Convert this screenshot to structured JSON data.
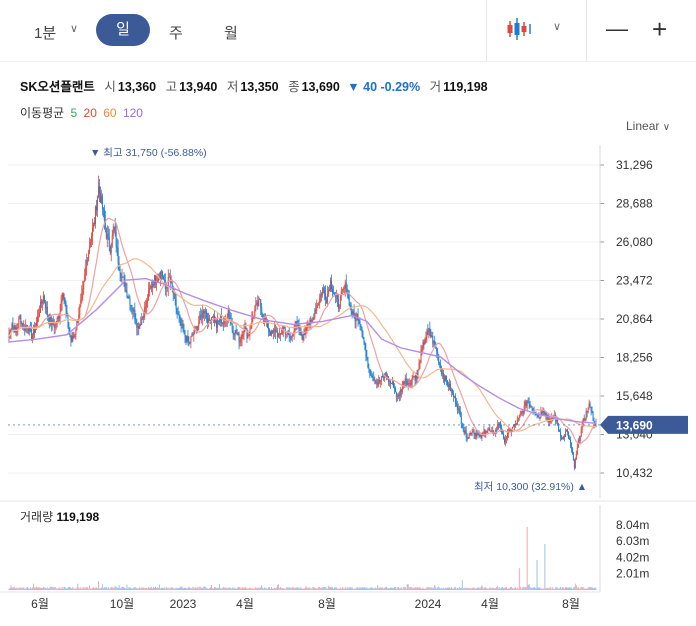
{
  "toolbar": {
    "intervals": [
      "1분",
      "일",
      "주",
      "월"
    ],
    "active_interval": "일",
    "minus_label": "—",
    "plus_label": "+"
  },
  "quote": {
    "name": "SK오션플랜트",
    "open_label": "시",
    "open": "13,360",
    "high_label": "고",
    "high": "13,940",
    "low_label": "저",
    "low": "13,350",
    "close_label": "종",
    "close": "13,690",
    "change": "▼ 40 -0.29%",
    "volume_label": "거",
    "volume": "119,198"
  },
  "moving_average": {
    "label": "이동평균",
    "periods": [
      {
        "value": "5",
        "color": "#3aa65a"
      },
      {
        "value": "20",
        "color": "#e0483f"
      },
      {
        "value": "60",
        "color": "#f08a3c"
      },
      {
        "value": "120",
        "color": "#9a6ad6"
      }
    ]
  },
  "scale_label": "Linear",
  "colors": {
    "up": "#e0483f",
    "down": "#1a7fd4",
    "accent": "#3d5a98",
    "volume": "#e79ba8"
  },
  "chart_data": {
    "type": "candlestick",
    "y_ticks": [
      "31,296",
      "28,688",
      "26,080",
      "23,472",
      "20,864",
      "18,256",
      "15,648",
      "13,040",
      "10,432"
    ],
    "y_tick_values": [
      31296,
      28688,
      26080,
      23472,
      20864,
      18256,
      15648,
      13040,
      10432
    ],
    "x_ticks": [
      "6월",
      "10월",
      "2023",
      "4월",
      "8월",
      "2024",
      "4월",
      "8월"
    ],
    "ylim": [
      10432,
      31296
    ],
    "current_price": "13,690",
    "current_value": 13690,
    "max_annotation": "▼ 최고 31,750 (-56.88%)",
    "min_annotation": "최저 10,300 (32.91%) ▲",
    "series_close": [
      [
        0,
        19600
      ],
      [
        4,
        20600
      ],
      [
        8,
        19900
      ],
      [
        12,
        21000
      ],
      [
        16,
        20200
      ],
      [
        20,
        20500
      ],
      [
        24,
        19700
      ],
      [
        28,
        20300
      ],
      [
        32,
        21500
      ],
      [
        36,
        22400
      ],
      [
        40,
        21200
      ],
      [
        44,
        20600
      ],
      [
        48,
        20400
      ],
      [
        52,
        21100
      ],
      [
        56,
        22900
      ],
      [
        60,
        20800
      ],
      [
        64,
        19400
      ],
      [
        68,
        19900
      ],
      [
        72,
        21300
      ],
      [
        76,
        22600
      ],
      [
        80,
        24800
      ],
      [
        84,
        26300
      ],
      [
        88,
        27500
      ],
      [
        92,
        29800
      ],
      [
        96,
        28400
      ],
      [
        100,
        26600
      ],
      [
        104,
        25700
      ],
      [
        108,
        27000
      ],
      [
        112,
        24900
      ],
      [
        116,
        23700
      ],
      [
        120,
        22800
      ],
      [
        124,
        22100
      ],
      [
        128,
        21300
      ],
      [
        132,
        20300
      ],
      [
        136,
        20900
      ],
      [
        140,
        21700
      ],
      [
        144,
        22800
      ],
      [
        148,
        23500
      ],
      [
        152,
        23700
      ],
      [
        156,
        24100
      ],
      [
        160,
        22900
      ],
      [
        164,
        23600
      ],
      [
        168,
        22600
      ],
      [
        172,
        21300
      ],
      [
        176,
        20400
      ],
      [
        180,
        19700
      ],
      [
        184,
        19200
      ],
      [
        188,
        19800
      ],
      [
        192,
        20300
      ],
      [
        196,
        21000
      ],
      [
        200,
        21600
      ],
      [
        204,
        20600
      ],
      [
        208,
        21200
      ],
      [
        212,
        20400
      ],
      [
        216,
        20900
      ],
      [
        220,
        20500
      ],
      [
        224,
        21500
      ],
      [
        228,
        20200
      ],
      [
        232,
        19900
      ],
      [
        236,
        19400
      ],
      [
        240,
        20300
      ],
      [
        244,
        19700
      ],
      [
        248,
        20800
      ],
      [
        252,
        21600
      ],
      [
        256,
        22000
      ],
      [
        260,
        20900
      ],
      [
        264,
        20400
      ],
      [
        268,
        19800
      ],
      [
        272,
        20100
      ],
      [
        276,
        19600
      ],
      [
        280,
        20300
      ],
      [
        284,
        19800
      ],
      [
        288,
        19500
      ],
      [
        292,
        20600
      ],
      [
        296,
        20000
      ],
      [
        300,
        19600
      ],
      [
        304,
        20800
      ],
      [
        308,
        20400
      ],
      [
        312,
        21500
      ],
      [
        316,
        22100
      ],
      [
        320,
        22900
      ],
      [
        324,
        22300
      ],
      [
        328,
        23400
      ],
      [
        332,
        22500
      ],
      [
        336,
        21800
      ],
      [
        340,
        22600
      ],
      [
        344,
        23200
      ],
      [
        348,
        21700
      ],
      [
        352,
        20900
      ],
      [
        356,
        21100
      ],
      [
        360,
        20200
      ],
      [
        364,
        18300
      ],
      [
        368,
        17300
      ],
      [
        372,
        16900
      ],
      [
        376,
        16500
      ],
      [
        380,
        16800
      ],
      [
        384,
        17100
      ],
      [
        388,
        16600
      ],
      [
        392,
        16400
      ],
      [
        396,
        15500
      ],
      [
        400,
        16100
      ],
      [
        404,
        16900
      ],
      [
        408,
        16400
      ],
      [
        412,
        17000
      ],
      [
        416,
        16900
      ],
      [
        420,
        18500
      ],
      [
        424,
        19600
      ],
      [
        428,
        20000
      ],
      [
        432,
        19400
      ],
      [
        436,
        18700
      ],
      [
        440,
        17500
      ],
      [
        444,
        16900
      ],
      [
        448,
        16400
      ],
      [
        452,
        15800
      ],
      [
        456,
        15200
      ],
      [
        460,
        14200
      ],
      [
        464,
        13200
      ],
      [
        468,
        12900
      ],
      [
        472,
        13300
      ],
      [
        476,
        13100
      ],
      [
        480,
        12800
      ],
      [
        484,
        13200
      ],
      [
        488,
        13400
      ],
      [
        492,
        13100
      ],
      [
        496,
        13300
      ],
      [
        500,
        13900
      ],
      [
        504,
        12600
      ],
      [
        508,
        13000
      ],
      [
        512,
        13400
      ],
      [
        516,
        13700
      ],
      [
        520,
        14200
      ],
      [
        524,
        14700
      ],
      [
        528,
        15300
      ],
      [
        532,
        15000
      ],
      [
        536,
        14600
      ],
      [
        540,
        14200
      ],
      [
        544,
        14800
      ],
      [
        548,
        14200
      ],
      [
        552,
        13900
      ],
      [
        556,
        14300
      ],
      [
        560,
        13400
      ],
      [
        564,
        12700
      ],
      [
        568,
        13300
      ],
      [
        572,
        12400
      ],
      [
        576,
        10800
      ],
      [
        580,
        12500
      ],
      [
        584,
        13700
      ],
      [
        588,
        14500
      ],
      [
        592,
        15100
      ],
      [
        596,
        13800
      ],
      [
        598,
        13690
      ]
    ],
    "series_ma120": [
      [
        0,
        19300
      ],
      [
        30,
        19500
      ],
      [
        60,
        19800
      ],
      [
        90,
        21500
      ],
      [
        120,
        23500
      ],
      [
        140,
        23600
      ],
      [
        160,
        23200
      ],
      [
        180,
        22600
      ],
      [
        200,
        22100
      ],
      [
        230,
        21400
      ],
      [
        260,
        20800
      ],
      [
        290,
        20500
      ],
      [
        320,
        20700
      ],
      [
        350,
        21100
      ],
      [
        365,
        20700
      ],
      [
        380,
        19500
      ],
      [
        400,
        18900
      ],
      [
        420,
        18600
      ],
      [
        440,
        18300
      ],
      [
        460,
        17200
      ],
      [
        480,
        16300
      ],
      [
        500,
        15500
      ],
      [
        520,
        14800
      ],
      [
        540,
        14400
      ],
      [
        560,
        14100
      ],
      [
        580,
        13900
      ],
      [
        598,
        13800
      ]
    ],
    "volume_ticks": [
      "8.04m",
      "6.03m",
      "4.02m",
      "2.01m"
    ],
    "volume_tick_values": [
      8040000,
      6030000,
      4020000,
      2010000
    ],
    "volume_max": 8650000,
    "volume_spikes": [
      [
        528,
        7800000
      ],
      [
        546,
        5700000
      ],
      [
        538,
        3700000
      ],
      [
        520,
        2700000
      ],
      [
        462,
        1200000
      ],
      [
        92,
        1100000
      ]
    ],
    "volume_label": "거래량",
    "volume_value": "119,198"
  }
}
